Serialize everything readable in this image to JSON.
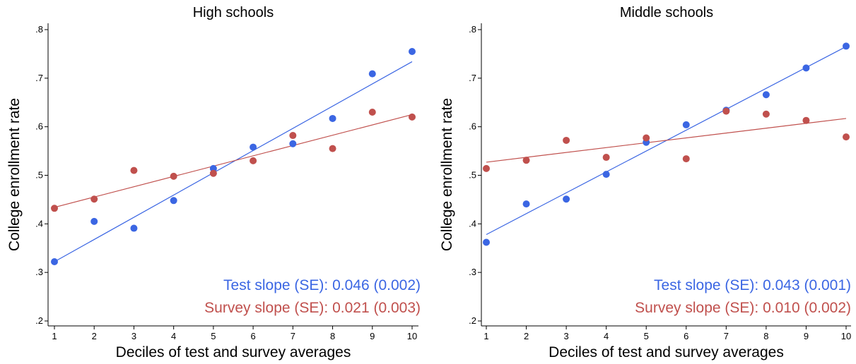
{
  "chart_data": [
    {
      "type": "scatter",
      "title": "High schools",
      "xlabel": "Deciles of test and survey averages",
      "ylabel": "College enrollment rate",
      "xlim": [
        1,
        10
      ],
      "ylim": [
        0.2,
        0.8
      ],
      "x_ticks": [
        "1",
        "2",
        "3",
        "4",
        "5",
        "6",
        "7",
        "8",
        "9",
        "10"
      ],
      "y_ticks": [
        ".2",
        ".3",
        ".4",
        ".5",
        ".6",
        ".7",
        ".8"
      ],
      "x": [
        1,
        2,
        3,
        4,
        5,
        6,
        7,
        8,
        9,
        10
      ],
      "series": [
        {
          "values": [
            0.322,
            0.405,
            0.391,
            0.448,
            0.514,
            0.558,
            0.565,
            0.617,
            0.709,
            0.755
          ],
          "color": "#3b66e3",
          "fit": {
            "x0": 1,
            "y0": 0.322,
            "x1": 10,
            "y1": 0.734
          }
        },
        {
          "values": [
            0.432,
            0.451,
            0.51,
            0.498,
            0.504,
            0.53,
            0.582,
            0.555,
            0.63,
            0.62
          ],
          "color": "#c0504d",
          "fit": {
            "x0": 1,
            "y0": 0.434,
            "x1": 10,
            "y1": 0.625
          }
        }
      ],
      "annotations": [
        {
          "text": "Test slope (SE): 0.046 (0.002)",
          "color": "#3b66e3"
        },
        {
          "text": "Survey slope (SE): 0.021 (0.003)",
          "color": "#c0504d"
        }
      ],
      "grid": false
    },
    {
      "type": "scatter",
      "title": "Middle schools",
      "xlabel": "Deciles of test and survey averages",
      "ylabel": "College enrollment rate",
      "xlim": [
        1,
        10
      ],
      "ylim": [
        0.2,
        0.8
      ],
      "x_ticks": [
        "1",
        "2",
        "3",
        "4",
        "5",
        "6",
        "7",
        "8",
        "9",
        "10"
      ],
      "y_ticks": [
        ".2",
        ".3",
        ".4",
        ".5",
        ".6",
        ".7",
        ".8"
      ],
      "x": [
        1,
        2,
        3,
        4,
        5,
        6,
        7,
        8,
        9,
        10
      ],
      "series": [
        {
          "values": [
            0.362,
            0.441,
            0.451,
            0.502,
            0.568,
            0.604,
            0.634,
            0.666,
            0.721,
            0.766
          ],
          "color": "#3b66e3",
          "fit": {
            "x0": 1,
            "y0": 0.378,
            "x1": 10,
            "y1": 0.765
          }
        },
        {
          "values": [
            0.514,
            0.531,
            0.572,
            0.537,
            0.577,
            0.534,
            0.632,
            0.626,
            0.613,
            0.579
          ],
          "color": "#c0504d",
          "fit": {
            "x0": 1,
            "y0": 0.527,
            "x1": 10,
            "y1": 0.617
          }
        }
      ],
      "annotations": [
        {
          "text": "Test slope (SE): 0.043 (0.001)",
          "color": "#3b66e3"
        },
        {
          "text": "Survey slope (SE): 0.010 (0.002)",
          "color": "#c0504d"
        }
      ],
      "grid": false
    }
  ]
}
